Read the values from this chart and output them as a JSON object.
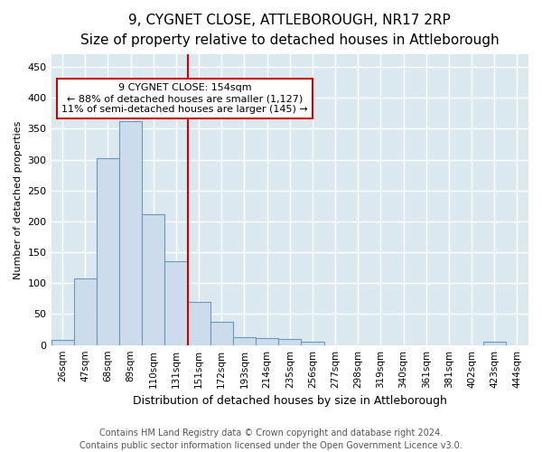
{
  "title": "9, CYGNET CLOSE, ATTLEBOROUGH, NR17 2RP",
  "subtitle": "Size of property relative to detached houses in Attleborough",
  "xlabel": "Distribution of detached houses by size in Attleborough",
  "ylabel": "Number of detached properties",
  "bar_color": "#ccdcec",
  "bar_edge_color": "#6699bb",
  "background_color": "#dce8f0",
  "grid_color": "#ffffff",
  "bins": [
    "26sqm",
    "47sqm",
    "68sqm",
    "89sqm",
    "110sqm",
    "131sqm",
    "151sqm",
    "172sqm",
    "193sqm",
    "214sqm",
    "235sqm",
    "256sqm",
    "277sqm",
    "298sqm",
    "319sqm",
    "340sqm",
    "361sqm",
    "381sqm",
    "402sqm",
    "423sqm",
    "444sqm"
  ],
  "values": [
    8,
    108,
    302,
    362,
    212,
    135,
    70,
    38,
    13,
    11,
    10,
    6,
    0,
    0,
    0,
    0,
    0,
    0,
    0,
    5,
    0
  ],
  "ylim": [
    0,
    470
  ],
  "yticks": [
    0,
    50,
    100,
    150,
    200,
    250,
    300,
    350,
    400,
    450
  ],
  "vline_position": 6.0,
  "vline_color": "#cc0000",
  "annotation_line1": "9 CYGNET CLOSE: 154sqm",
  "annotation_line2": "← 88% of detached houses are smaller (1,127)",
  "annotation_line3": "11% of semi-detached houses are larger (145) →",
  "footer": "Contains HM Land Registry data © Crown copyright and database right 2024.\nContains public sector information licensed under the Open Government Licence v3.0.",
  "title_fontsize": 11,
  "subtitle_fontsize": 9.5,
  "annotation_fontsize": 8,
  "footer_fontsize": 7,
  "ylabel_fontsize": 8,
  "xlabel_fontsize": 9,
  "xtick_fontsize": 7.5,
  "ytick_fontsize": 8
}
